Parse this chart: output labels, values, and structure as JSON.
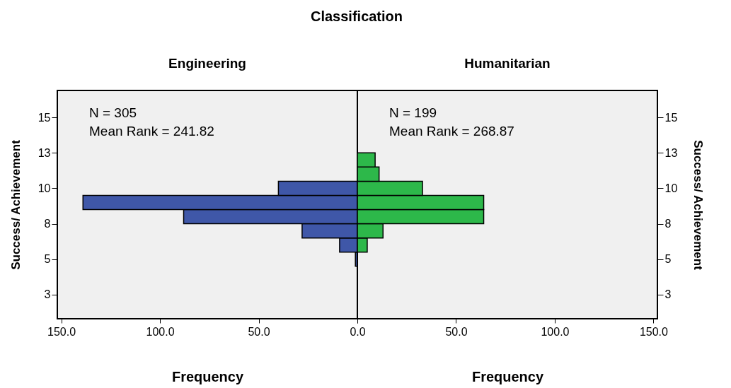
{
  "chart_data": [
    {
      "type": "histogram",
      "title": "Classification",
      "subtitle": "Engineering",
      "orientation": "horizontal",
      "xlabel": "Frequency",
      "ylabel": "Success/ Achievement",
      "bins": [
        4.5,
        5.5,
        6.5,
        7.5,
        8.5,
        9.5,
        10.5,
        11.5,
        12.5
      ],
      "values": [
        1,
        9,
        28,
        88,
        139,
        40,
        0,
        0
      ],
      "color": "#3f57a8",
      "xlim": [
        152,
        0
      ],
      "xticks": [
        {
          "value": 150,
          "label": "150.0"
        },
        {
          "value": 100,
          "label": "100.0"
        },
        {
          "value": 50,
          "label": "50.0"
        },
        {
          "value": 0,
          "label": null
        }
      ],
      "ylim": [
        0.8,
        16.9
      ],
      "yticks": [
        {
          "value": 2.5,
          "label": "3"
        },
        5,
        {
          "value": 7.5,
          "label": "8"
        },
        10,
        {
          "value": 12.5,
          "label": "13"
        },
        15
      ],
      "annotations": [
        "N = 305",
        "Mean Rank = 241.82"
      ],
      "grid": false
    },
    {
      "type": "histogram",
      "subtitle": "Humanitarian",
      "orientation": "horizontal",
      "xlabel": "Frequency",
      "ylabel": "Success/ Achievement",
      "bins": [
        4.5,
        5.5,
        6.5,
        7.5,
        8.5,
        9.5,
        10.5,
        11.5,
        12.5
      ],
      "values": [
        0,
        5,
        13,
        64,
        64,
        33,
        11,
        9
      ],
      "color": "#2db84a",
      "xlim": [
        0,
        152
      ],
      "xticks": [
        {
          "value": 0,
          "label": "0.0"
        },
        {
          "value": 50,
          "label": "50.0"
        },
        {
          "value": 100,
          "label": "100.0"
        },
        {
          "value": 150,
          "label": "150.0"
        }
      ],
      "ylim": [
        0.8,
        16.9
      ],
      "yticks": [
        {
          "value": 2.5,
          "label": "3"
        },
        5,
        {
          "value": 7.5,
          "label": "8"
        },
        10,
        {
          "value": 12.5,
          "label": "13"
        },
        15
      ],
      "annotations": [
        "N = 199",
        "Mean Rank = 268.87"
      ],
      "grid": false
    }
  ]
}
